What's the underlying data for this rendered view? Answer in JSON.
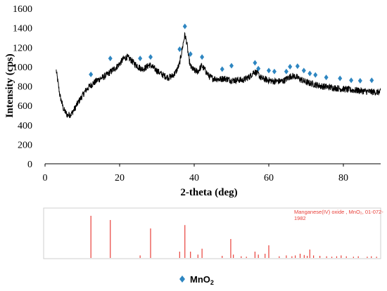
{
  "chart_data": [
    {
      "type": "line",
      "title": "",
      "xlabel": "2-theta (deg)",
      "ylabel": "Intensity (cps)",
      "xlim": [
        0,
        90
      ],
      "ylim": [
        0,
        1600
      ],
      "xticks": [
        0,
        20,
        40,
        60,
        80
      ],
      "yticks": [
        0,
        200,
        400,
        600,
        800,
        1000,
        1200,
        1400,
        1600
      ],
      "grid": false,
      "line_color": "#000000",
      "marker_color": "#2e86c1",
      "pattern": [
        [
          3,
          960
        ],
        [
          4,
          700
        ],
        [
          5,
          560
        ],
        [
          6,
          500
        ],
        [
          7,
          510
        ],
        [
          8,
          570
        ],
        [
          9,
          640
        ],
        [
          10,
          700
        ],
        [
          11,
          760
        ],
        [
          12,
          800
        ],
        [
          13,
          830
        ],
        [
          14,
          860
        ],
        [
          15,
          880
        ],
        [
          16,
          900
        ],
        [
          17,
          930
        ],
        [
          18,
          960
        ],
        [
          19,
          990
        ],
        [
          20,
          1030
        ],
        [
          21,
          1080
        ],
        [
          22,
          1100
        ],
        [
          23,
          1070
        ],
        [
          24,
          1030
        ],
        [
          25,
          1000
        ],
        [
          26,
          975
        ],
        [
          27,
          990
        ],
        [
          28,
          1020
        ],
        [
          29,
          990
        ],
        [
          30,
          960
        ],
        [
          31,
          930
        ],
        [
          32,
          905
        ],
        [
          33,
          890
        ],
        [
          34,
          900
        ],
        [
          35,
          940
        ],
        [
          36,
          1020
        ],
        [
          36.5,
          1120
        ],
        [
          37,
          1230
        ],
        [
          37.5,
          1330
        ],
        [
          38,
          1250
        ],
        [
          38.5,
          1100
        ],
        [
          39,
          1000
        ],
        [
          40,
          960
        ],
        [
          41,
          950
        ],
        [
          42,
          1010
        ],
        [
          43,
          960
        ],
        [
          44,
          900
        ],
        [
          45,
          880
        ],
        [
          46,
          875
        ],
        [
          47,
          870
        ],
        [
          48,
          880
        ],
        [
          49,
          870
        ],
        [
          50,
          860
        ],
        [
          51,
          860
        ],
        [
          52,
          865
        ],
        [
          53,
          860
        ],
        [
          54,
          880
        ],
        [
          55,
          900
        ],
        [
          56,
          950
        ],
        [
          57,
          930
        ],
        [
          58,
          880
        ],
        [
          59,
          870
        ],
        [
          60,
          860
        ],
        [
          61,
          850
        ],
        [
          62,
          850
        ],
        [
          63,
          850
        ],
        [
          64,
          855
        ],
        [
          65,
          880
        ],
        [
          66,
          905
        ],
        [
          67,
          900
        ],
        [
          68,
          880
        ],
        [
          69,
          860
        ],
        [
          70,
          840
        ],
        [
          72,
          820
        ],
        [
          74,
          800
        ],
        [
          76,
          790
        ],
        [
          78,
          780
        ],
        [
          80,
          770
        ],
        [
          82,
          760
        ],
        [
          84,
          755
        ],
        [
          86,
          745
        ],
        [
          88,
          740
        ],
        [
          90,
          735
        ]
      ],
      "mno2_peaks": [
        [
          12.3,
          920
        ],
        [
          17.5,
          1085
        ],
        [
          25.5,
          1085
        ],
        [
          28.3,
          1100
        ],
        [
          36.1,
          1180
        ],
        [
          37.5,
          1415
        ],
        [
          39.0,
          1130
        ],
        [
          42.1,
          1100
        ],
        [
          47.5,
          975
        ],
        [
          50.0,
          1010
        ],
        [
          56.3,
          1040
        ],
        [
          57.2,
          980
        ],
        [
          60.0,
          960
        ],
        [
          61.5,
          950
        ],
        [
          64.7,
          950
        ],
        [
          65.7,
          1000
        ],
        [
          67.7,
          1005
        ],
        [
          69.4,
          960
        ],
        [
          71.0,
          930
        ],
        [
          72.5,
          915
        ],
        [
          75.4,
          890
        ],
        [
          79.1,
          880
        ],
        [
          82.1,
          860
        ],
        [
          84.5,
          855
        ],
        [
          87.6,
          860
        ]
      ]
    },
    {
      "type": "bar",
      "title": "Manganese(IV) oxide , MnO₂, 01-072-1982",
      "bar_color": "#e8403a",
      "xlim": [
        0,
        90
      ],
      "ylim": [
        0,
        100
      ],
      "sticks": [
        [
          12.3,
          100
        ],
        [
          17.5,
          90
        ],
        [
          25.5,
          6
        ],
        [
          28.3,
          70
        ],
        [
          36.1,
          15
        ],
        [
          37.5,
          78
        ],
        [
          39.0,
          15
        ],
        [
          41.0,
          8
        ],
        [
          42.1,
          22
        ],
        [
          47.5,
          5
        ],
        [
          49.8,
          45
        ],
        [
          50.5,
          8
        ],
        [
          52.6,
          4
        ],
        [
          54.0,
          3
        ],
        [
          56.3,
          15
        ],
        [
          57.2,
          8
        ],
        [
          59.0,
          10
        ],
        [
          60.0,
          30
        ],
        [
          62.8,
          4
        ],
        [
          64.7,
          6
        ],
        [
          66.2,
          4
        ],
        [
          67.1,
          6
        ],
        [
          68.4,
          10
        ],
        [
          69.5,
          7
        ],
        [
          70.3,
          5
        ],
        [
          71.0,
          20
        ],
        [
          72.0,
          6
        ],
        [
          73.7,
          5
        ],
        [
          75.5,
          4
        ],
        [
          76.9,
          3
        ],
        [
          78.2,
          4
        ],
        [
          79.4,
          6
        ],
        [
          80.8,
          4
        ],
        [
          82.7,
          3
        ],
        [
          84.0,
          4
        ],
        [
          86.4,
          3
        ],
        [
          87.5,
          4
        ],
        [
          88.9,
          3
        ]
      ]
    }
  ],
  "legend": {
    "label": "MnO",
    "subscript": "2",
    "marker": "diamond",
    "marker_color": "#2e86c1"
  }
}
